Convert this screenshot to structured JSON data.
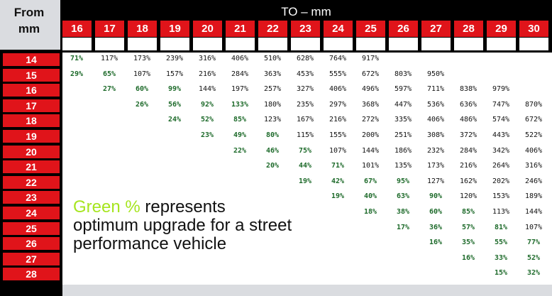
{
  "header": {
    "from_label_line1": "From",
    "from_label_line2": "mm",
    "to_label": "TO – mm"
  },
  "to_columns": [
    "16",
    "17",
    "18",
    "19",
    "20",
    "21",
    "22",
    "23",
    "24",
    "25",
    "26",
    "27",
    "28",
    "29",
    "30"
  ],
  "from_rows": [
    "14",
    "15",
    "16",
    "17",
    "18",
    "19",
    "20",
    "21",
    "22",
    "23",
    "24",
    "25",
    "26",
    "27",
    "28"
  ],
  "legend": {
    "highlight": "Green %",
    "text_line1": " represents",
    "text_line2": "optimum upgrade for a street",
    "text_line3": "performance vehicle"
  },
  "colors": {
    "header_red": "#e0141a",
    "green_text": "#1d6a2a",
    "legend_green": "#a6e51f"
  },
  "table": [
    [
      "71%",
      "117%",
      "173%",
      "239%",
      "316%",
      "406%",
      "510%",
      "628%",
      "764%",
      "917%",
      "",
      "",
      "",
      "",
      ""
    ],
    [
      "29%",
      "65%",
      "107%",
      "157%",
      "216%",
      "284%",
      "363%",
      "453%",
      "555%",
      "672%",
      "803%",
      "950%",
      "",
      "",
      ""
    ],
    [
      "",
      "27%",
      "60%",
      "99%",
      "144%",
      "197%",
      "257%",
      "327%",
      "406%",
      "496%",
      "597%",
      "711%",
      "838%",
      "979%",
      ""
    ],
    [
      "",
      "",
      "26%",
      "56%",
      "92%",
      "133%",
      "180%",
      "235%",
      "297%",
      "368%",
      "447%",
      "536%",
      "636%",
      "747%",
      "870%"
    ],
    [
      "",
      "",
      "",
      "24%",
      "52%",
      "85%",
      "123%",
      "167%",
      "216%",
      "272%",
      "335%",
      "406%",
      "486%",
      "574%",
      "672%"
    ],
    [
      "",
      "",
      "",
      "",
      "23%",
      "49%",
      "80%",
      "115%",
      "155%",
      "200%",
      "251%",
      "308%",
      "372%",
      "443%",
      "522%"
    ],
    [
      "",
      "",
      "",
      "",
      "",
      "22%",
      "46%",
      "75%",
      "107%",
      "144%",
      "186%",
      "232%",
      "284%",
      "342%",
      "406%"
    ],
    [
      "",
      "",
      "",
      "",
      "",
      "",
      "20%",
      "44%",
      "71%",
      "101%",
      "135%",
      "173%",
      "216%",
      "264%",
      "316%"
    ],
    [
      "",
      "",
      "",
      "",
      "",
      "",
      "",
      "19%",
      "42%",
      "67%",
      "95%",
      "127%",
      "162%",
      "202%",
      "246%"
    ],
    [
      "",
      "",
      "",
      "",
      "",
      "",
      "",
      "",
      "19%",
      "40%",
      "63%",
      "90%",
      "120%",
      "153%",
      "189%"
    ],
    [
      "",
      "",
      "",
      "",
      "",
      "",
      "",
      "",
      "",
      "18%",
      "38%",
      "60%",
      "85%",
      "113%",
      "144%"
    ],
    [
      "",
      "",
      "",
      "",
      "",
      "",
      "",
      "",
      "",
      "",
      "17%",
      "36%",
      "57%",
      "81%",
      "107%"
    ],
    [
      "",
      "",
      "",
      "",
      "",
      "",
      "",
      "",
      "",
      "",
      "",
      "16%",
      "35%",
      "55%",
      "77%"
    ],
    [
      "",
      "",
      "",
      "",
      "",
      "",
      "",
      "",
      "",
      "",
      "",
      "",
      "16%",
      "33%",
      "52%"
    ],
    [
      "",
      "",
      "",
      "",
      "",
      "",
      "",
      "",
      "",
      "",
      "",
      "",
      "",
      "15%",
      "32%"
    ]
  ],
  "green_cells": [
    [
      0,
      0
    ],
    [
      1,
      0
    ],
    [
      1,
      1
    ],
    [
      2,
      1
    ],
    [
      2,
      2
    ],
    [
      2,
      3
    ],
    [
      3,
      2
    ],
    [
      3,
      3
    ],
    [
      3,
      4
    ],
    [
      3,
      5
    ],
    [
      4,
      3
    ],
    [
      4,
      4
    ],
    [
      4,
      5
    ],
    [
      5,
      4
    ],
    [
      5,
      5
    ],
    [
      5,
      6
    ],
    [
      6,
      5
    ],
    [
      6,
      6
    ],
    [
      6,
      7
    ],
    [
      7,
      6
    ],
    [
      7,
      7
    ],
    [
      7,
      8
    ],
    [
      8,
      7
    ],
    [
      8,
      8
    ],
    [
      8,
      9
    ],
    [
      8,
      10
    ],
    [
      9,
      8
    ],
    [
      9,
      9
    ],
    [
      9,
      10
    ],
    [
      9,
      11
    ],
    [
      10,
      9
    ],
    [
      10,
      10
    ],
    [
      10,
      11
    ],
    [
      10,
      12
    ],
    [
      11,
      10
    ],
    [
      11,
      11
    ],
    [
      11,
      12
    ],
    [
      11,
      13
    ],
    [
      12,
      11
    ],
    [
      12,
      12
    ],
    [
      12,
      13
    ],
    [
      12,
      14
    ],
    [
      13,
      12
    ],
    [
      13,
      13
    ],
    [
      13,
      14
    ],
    [
      14,
      13
    ],
    [
      14,
      14
    ]
  ]
}
